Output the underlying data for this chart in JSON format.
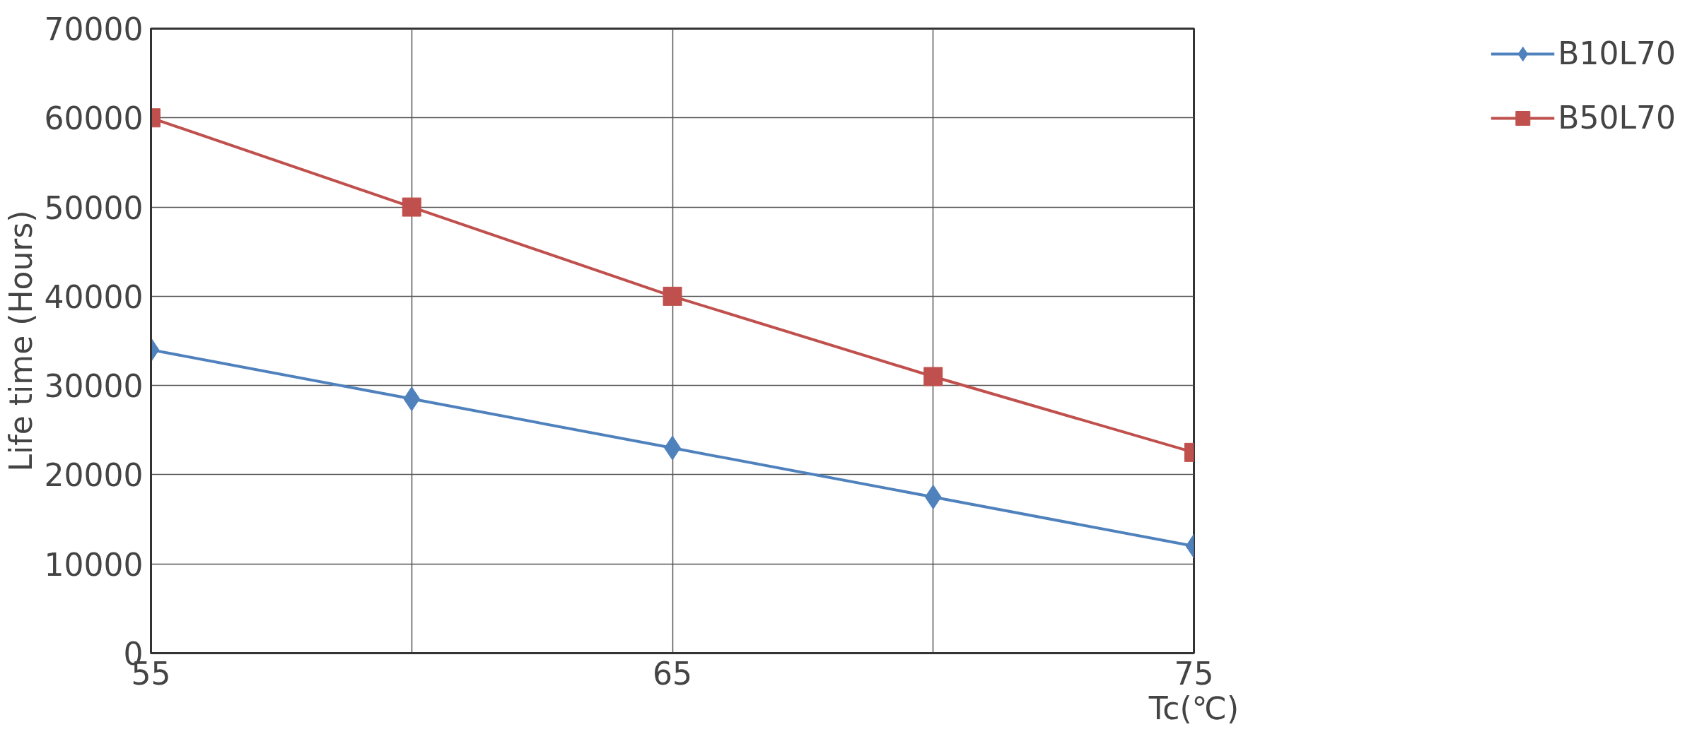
{
  "chart_data": {
    "type": "line",
    "xlabel": "Tc(℃)",
    "ylabel": "Life time (Hours)",
    "x": [
      55,
      60,
      65,
      70,
      75
    ],
    "series": [
      {
        "name": "B10L70",
        "color": "#4f81bd",
        "marker": "diamond",
        "values": [
          34000,
          28500,
          23000,
          17500,
          12000
        ]
      },
      {
        "name": "B50L70",
        "color": "#c0504d",
        "marker": "square",
        "values": [
          60000,
          50000,
          40000,
          31000,
          22500
        ]
      }
    ],
    "xlim": [
      55,
      75
    ],
    "xticks": [
      55,
      {
        "value": 60,
        "label": null
      },
      65,
      {
        "value": 70,
        "label": null
      },
      75
    ],
    "ylim": [
      0,
      70000
    ],
    "yticks": [
      0,
      10000,
      20000,
      30000,
      40000,
      50000,
      60000,
      70000
    ],
    "grid": true,
    "legend": "right",
    "line_style": "solid"
  }
}
